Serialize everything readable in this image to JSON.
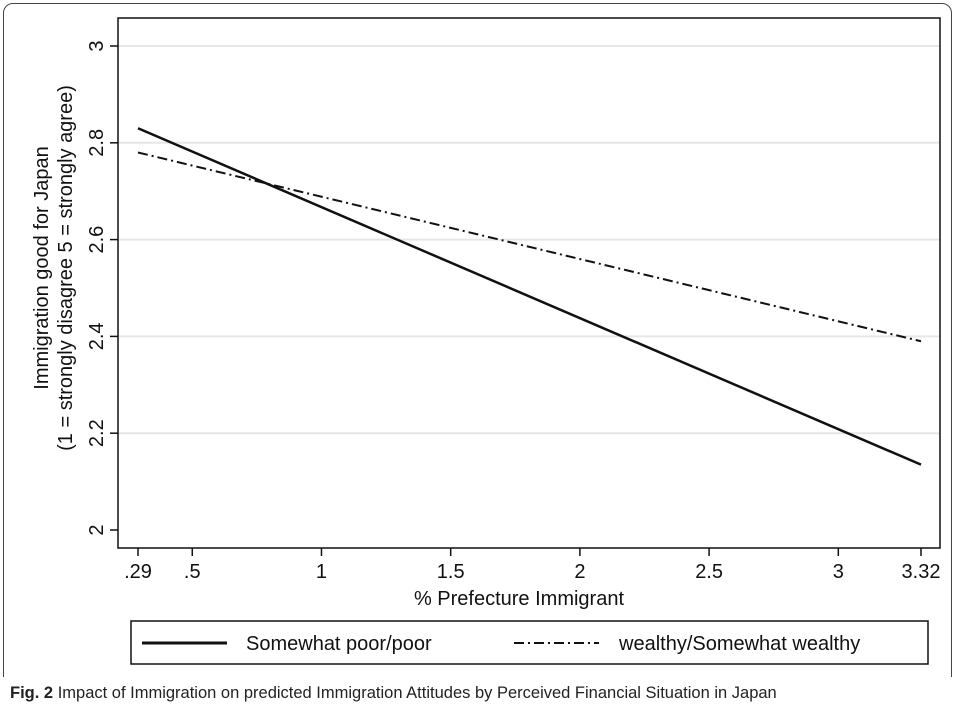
{
  "figure": {
    "label": "Fig. 2",
    "caption": "Impact of Immigration on predicted Immigration Attitudes by Perceived Financial Situation in Japan"
  },
  "chart_data": {
    "type": "line",
    "title": "",
    "xlabel": "% Prefecture Immigrant",
    "ylabel_lines": [
      "Immigration good for Japan",
      "(1 = strongly disagree 5 = strongly agree)"
    ],
    "xlim": [
      0.29,
      3.32
    ],
    "ylim": [
      2,
      3
    ],
    "x_ticks": [
      0.29,
      0.5,
      1,
      1.5,
      2,
      2.5,
      3,
      3.32
    ],
    "x_tick_labels": [
      ".29",
      ".5",
      "1",
      "1.5",
      "2",
      "2.5",
      "3",
      "3.32"
    ],
    "y_ticks": [
      2,
      2.2,
      2.4,
      2.6,
      2.8,
      3
    ],
    "y_tick_labels": [
      "2",
      "2.2",
      "2.4",
      "2.6",
      "2.8",
      "3"
    ],
    "grid": "horizontal",
    "legend_position": "bottom",
    "series": [
      {
        "name": "Somewhat poor/poor",
        "style": "solid",
        "x": [
          0.29,
          3.32
        ],
        "y": [
          2.83,
          2.135
        ]
      },
      {
        "name": "wealthy/Somewhat wealthy",
        "style": "dashdot",
        "x": [
          0.29,
          3.32
        ],
        "y": [
          2.78,
          2.39
        ]
      }
    ],
    "colors": {
      "line": "#111111",
      "grid": "#e6e6e6"
    }
  }
}
